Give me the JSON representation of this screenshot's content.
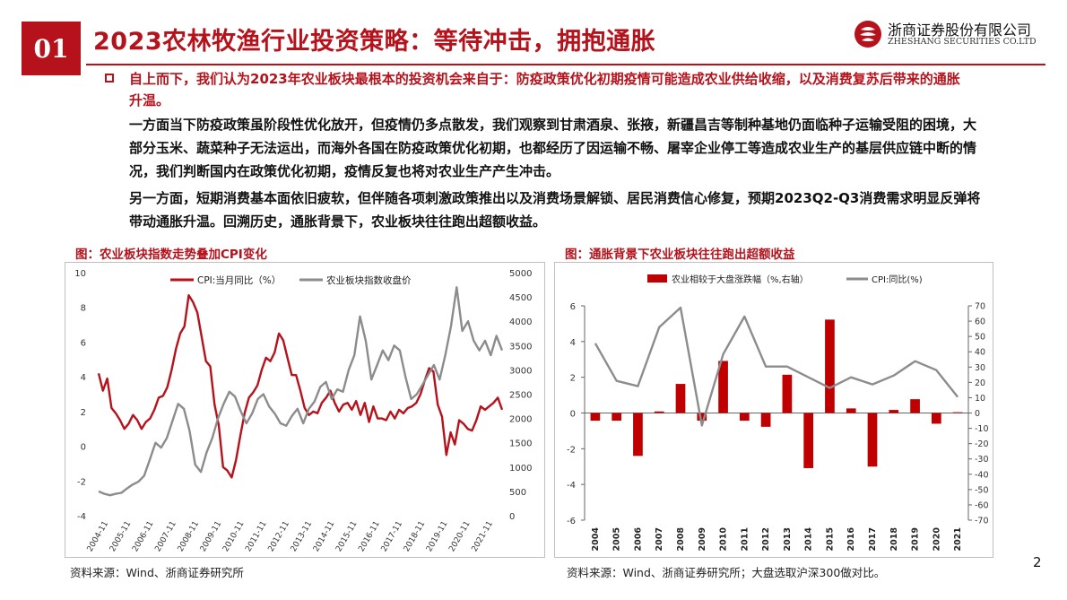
{
  "header": {
    "section_number": "01",
    "title": "2023农林牧渔行业投资策略：等待冲击，拥抱通胀",
    "logo_cn": "浙商证券股份有限公司",
    "logo_en": "ZHESHANG SECURITIES CO.LTD",
    "colors": {
      "accent": "#b5121b"
    }
  },
  "body": {
    "lead": "自上而下，我们认为2023年农业板块最根本的投资机会来自于：防疫政策优化初期疫情可能造成农业供给收缩，以及消费复苏后带来的通胀升温。",
    "para1": "一方面当下防疫政策虽阶段性优化放开，但疫情仍多点散发，我们观察到甘肃酒泉、张掖，新疆昌吉等制种基地仍面临种子运输受阻的困境，大部分玉米、蔬菜种子无法运出，而海外各国在防疫政策优化初期，也都经历了因运输不畅、屠宰企业停工等造成农业生产的基层供应链中断的情况，我们判断国内在政策优化初期，疫情反复也将对农业生产产生冲击。",
    "para2": "另一方面，短期消费基本面依旧疲软，但伴随各项刺激政策推出以及消费场景解锁、居民消费信心修复，预期2023Q2-Q3消费需求明显反弹将带动通胀升温。回溯历史，通胀背景下，农业板块往往跑出超额收益。"
  },
  "figure1": {
    "title": "图：农业板块指数走势叠加CPI变化",
    "source": "资料来源：Wind、浙商证券研究所"
  },
  "figure2": {
    "title": "图：通胀背景下农业板块往往跑出超额收益",
    "source": "资料来源：Wind、浙商证券研究所；大盘选取沪深300做对比。"
  },
  "page_number": "2",
  "chart_data": [
    {
      "type": "line",
      "title": "",
      "x_tick_labels": [
        "2004-11",
        "2005-11",
        "2006-11",
        "2007-11",
        "2008-11",
        "2009-11",
        "2010-11",
        "2011-11",
        "2012-11",
        "2013-11",
        "2014-11",
        "2015-11",
        "2016-11",
        "2017-11",
        "2018-11",
        "2019-11",
        "2020-11",
        "2021-11"
      ],
      "y_left": {
        "min": -4,
        "max": 10,
        "ticks": [
          -4,
          -2,
          0,
          2,
          4,
          6,
          8,
          10
        ]
      },
      "y_right": {
        "min": 0,
        "max": 5000,
        "ticks": [
          0,
          500,
          1000,
          1500,
          2000,
          2500,
          3000,
          3500,
          4000,
          4500,
          5000
        ]
      },
      "legend_position": "top",
      "series": [
        {
          "name": "CPI:当月同比（%）",
          "axis": "left",
          "color": "#b5121b",
          "values": [
            4.2,
            3.2,
            3.9,
            2.2,
            1.9,
            1.5,
            1.0,
            1.3,
            1.8,
            1.5,
            1.0,
            1.4,
            1.6,
            2.1,
            2.8,
            2.9,
            3.4,
            4.4,
            5.6,
            6.5,
            6.9,
            8.7,
            8.3,
            7.7,
            6.3,
            4.9,
            4.6,
            2.4,
            1.2,
            -1.2,
            -1.4,
            -1.8,
            -0.8,
            0.6,
            1.9,
            2.8,
            3.1,
            3.5,
            4.4,
            5.1,
            4.9,
            5.4,
            6.5,
            6.1,
            5.1,
            4.1,
            4.1,
            3.2,
            2.2,
            1.8,
            2.0,
            1.9,
            2.5,
            2.8,
            3.2,
            2.5,
            2.0,
            2.4,
            2.5,
            2.1,
            2.6,
            1.8,
            2.5,
            1.4,
            2.3,
            1.6,
            1.6,
            1.5,
            2.0,
            1.6,
            2.1,
            1.9,
            2.2,
            2.3,
            2.5,
            3.0,
            3.8,
            4.5,
            4.3,
            2.4,
            1.7,
            -0.5,
            0.8,
            0.1,
            1.5,
            1.3,
            1.0,
            0.9,
            1.5,
            2.3,
            2.1,
            2.3,
            2.5,
            2.8,
            2.1
          ]
        },
        {
          "name": "农业板块指数收盘价",
          "axis": "right",
          "color": "#8c8c8c",
          "values": [
            500,
            450,
            420,
            450,
            470,
            560,
            640,
            700,
            820,
            1150,
            1500,
            1400,
            1600,
            1950,
            2300,
            2200,
            1750,
            1050,
            900,
            1300,
            1600,
            2000,
            2300,
            2550,
            2450,
            2150,
            1900,
            2100,
            2400,
            2500,
            2250,
            2100,
            1900,
            1850,
            2050,
            2200,
            1900,
            2200,
            2350,
            2650,
            2750,
            2400,
            2600,
            2550,
            3000,
            3300,
            4100,
            3600,
            2800,
            3100,
            3400,
            3200,
            3500,
            3400,
            2850,
            2400,
            2500,
            2700,
            2900,
            3100,
            2800,
            3300,
            3900,
            4700,
            3800,
            4000,
            3600,
            3400,
            3600,
            3300,
            3700,
            3400
          ]
        }
      ]
    },
    {
      "type": "bar",
      "title": "",
      "categories": [
        "2004",
        "2005",
        "2006",
        "2007",
        "2008",
        "2009",
        "2010",
        "2011",
        "2012",
        "2013",
        "2014",
        "2015",
        "2016",
        "2017",
        "2018",
        "2019",
        "2020",
        "2021"
      ],
      "y_left": {
        "min": -6,
        "max": 6,
        "ticks": [
          -6,
          -4,
          -2,
          0,
          2,
          4,
          6
        ]
      },
      "y_right": {
        "min": -70,
        "max": 70,
        "ticks": [
          -70,
          -60,
          -50,
          -40,
          -30,
          -20,
          -10,
          0,
          10,
          20,
          30,
          40,
          50,
          60,
          70
        ]
      },
      "legend_position": "top",
      "series": [
        {
          "name": "农业相较于大盘涨跌幅（%,右轴）",
          "axis": "right",
          "type": "bar",
          "color": "#c00000",
          "values": [
            -5,
            -5,
            -28,
            1,
            19,
            -5,
            34,
            -5,
            -9,
            25,
            -36,
            61,
            3,
            -35,
            2,
            9,
            -7,
            0.5
          ]
        },
        {
          "name": "CPI:同比(%)",
          "axis": "left",
          "type": "line",
          "color": "#8c8c8c",
          "values": [
            3.9,
            1.8,
            1.5,
            4.8,
            5.9,
            -0.7,
            3.3,
            5.4,
            2.6,
            2.6,
            2.0,
            1.4,
            2.0,
            1.6,
            2.1,
            2.9,
            2.4,
            0.9
          ]
        }
      ]
    }
  ]
}
